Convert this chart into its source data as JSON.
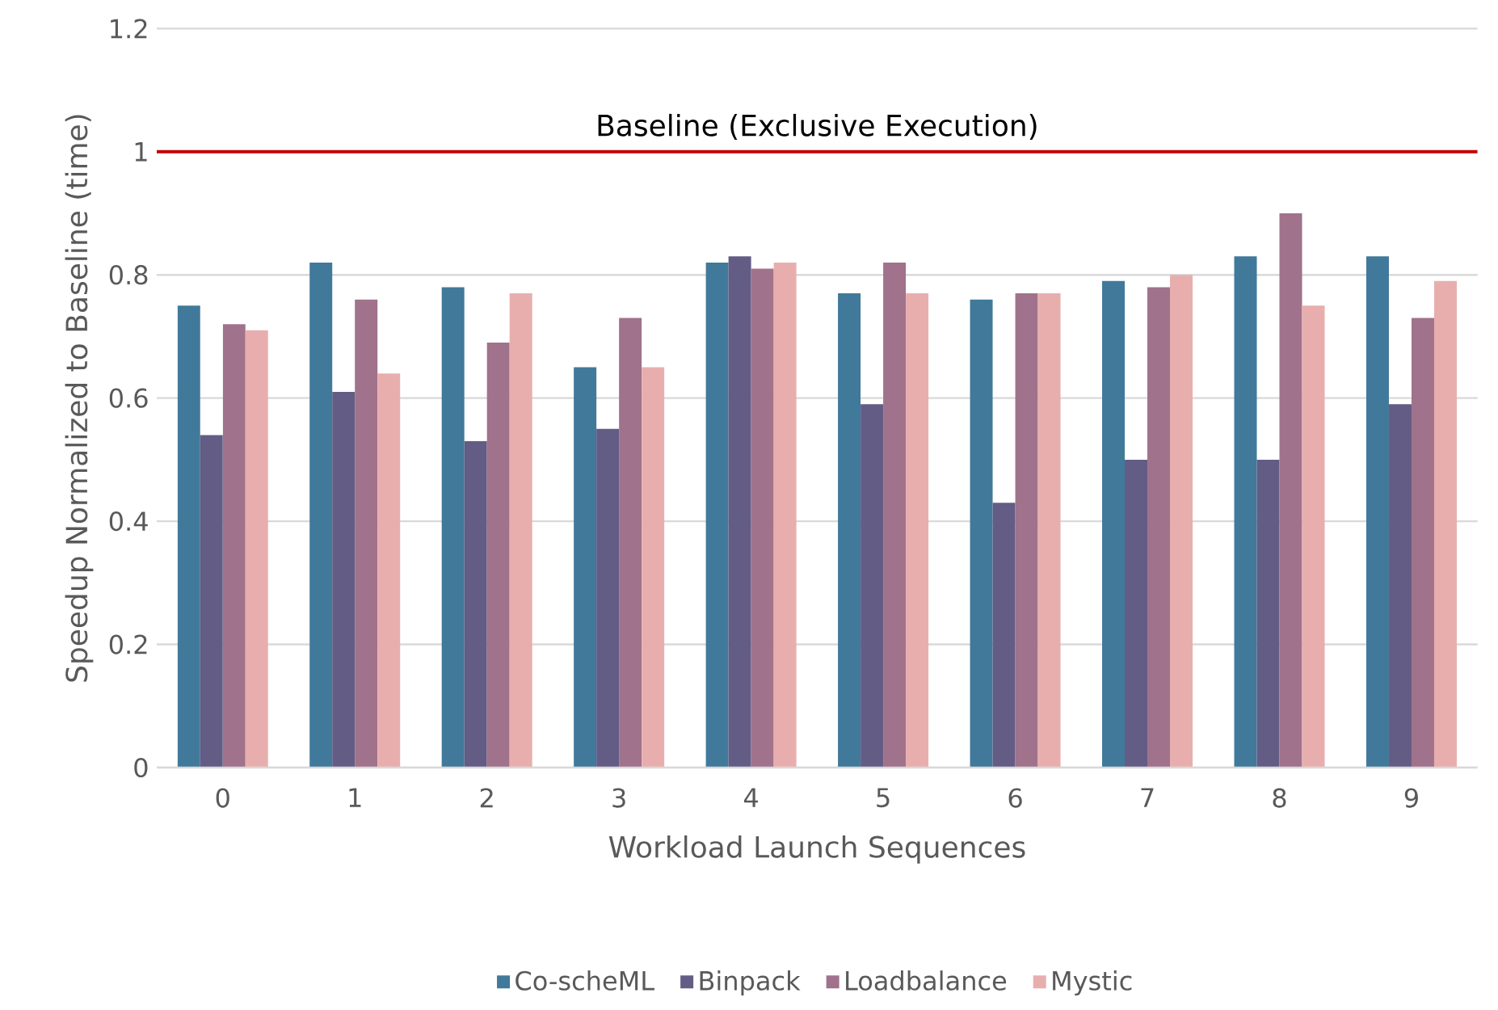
{
  "chart_data": {
    "type": "bar",
    "xlabel": "Workload Launch Sequences",
    "ylabel": "Speedup Normalized to Baseline (time)",
    "categories": [
      "0",
      "1",
      "2",
      "3",
      "4",
      "5",
      "6",
      "7",
      "8",
      "9"
    ],
    "series": [
      {
        "name": "Co-scheML",
        "color": "#41799a",
        "values": [
          0.75,
          0.82,
          0.78,
          0.65,
          0.82,
          0.77,
          0.76,
          0.79,
          0.83,
          0.83
        ]
      },
      {
        "name": "Binpack",
        "color": "#635c85",
        "values": [
          0.54,
          0.61,
          0.53,
          0.55,
          0.83,
          0.59,
          0.43,
          0.5,
          0.5,
          0.59
        ]
      },
      {
        "name": "Loadbalance",
        "color": "#a0728b",
        "values": [
          0.72,
          0.76,
          0.69,
          0.73,
          0.81,
          0.82,
          0.77,
          0.78,
          0.9,
          0.73
        ]
      },
      {
        "name": "Mystic",
        "color": "#e8aeae",
        "values": [
          0.71,
          0.64,
          0.77,
          0.65,
          0.82,
          0.77,
          0.77,
          0.8,
          0.75,
          0.79
        ]
      }
    ],
    "ylim": [
      0,
      1.2
    ],
    "yticks": [
      0,
      0.2,
      0.4,
      0.6,
      0.8,
      1,
      1.2
    ],
    "ref_lines": [
      {
        "axis": "y",
        "value": 1,
        "label": "Baseline (Exclusive Execution)",
        "color": "#c00000"
      }
    ],
    "grid": "y",
    "legend": "bottom"
  }
}
